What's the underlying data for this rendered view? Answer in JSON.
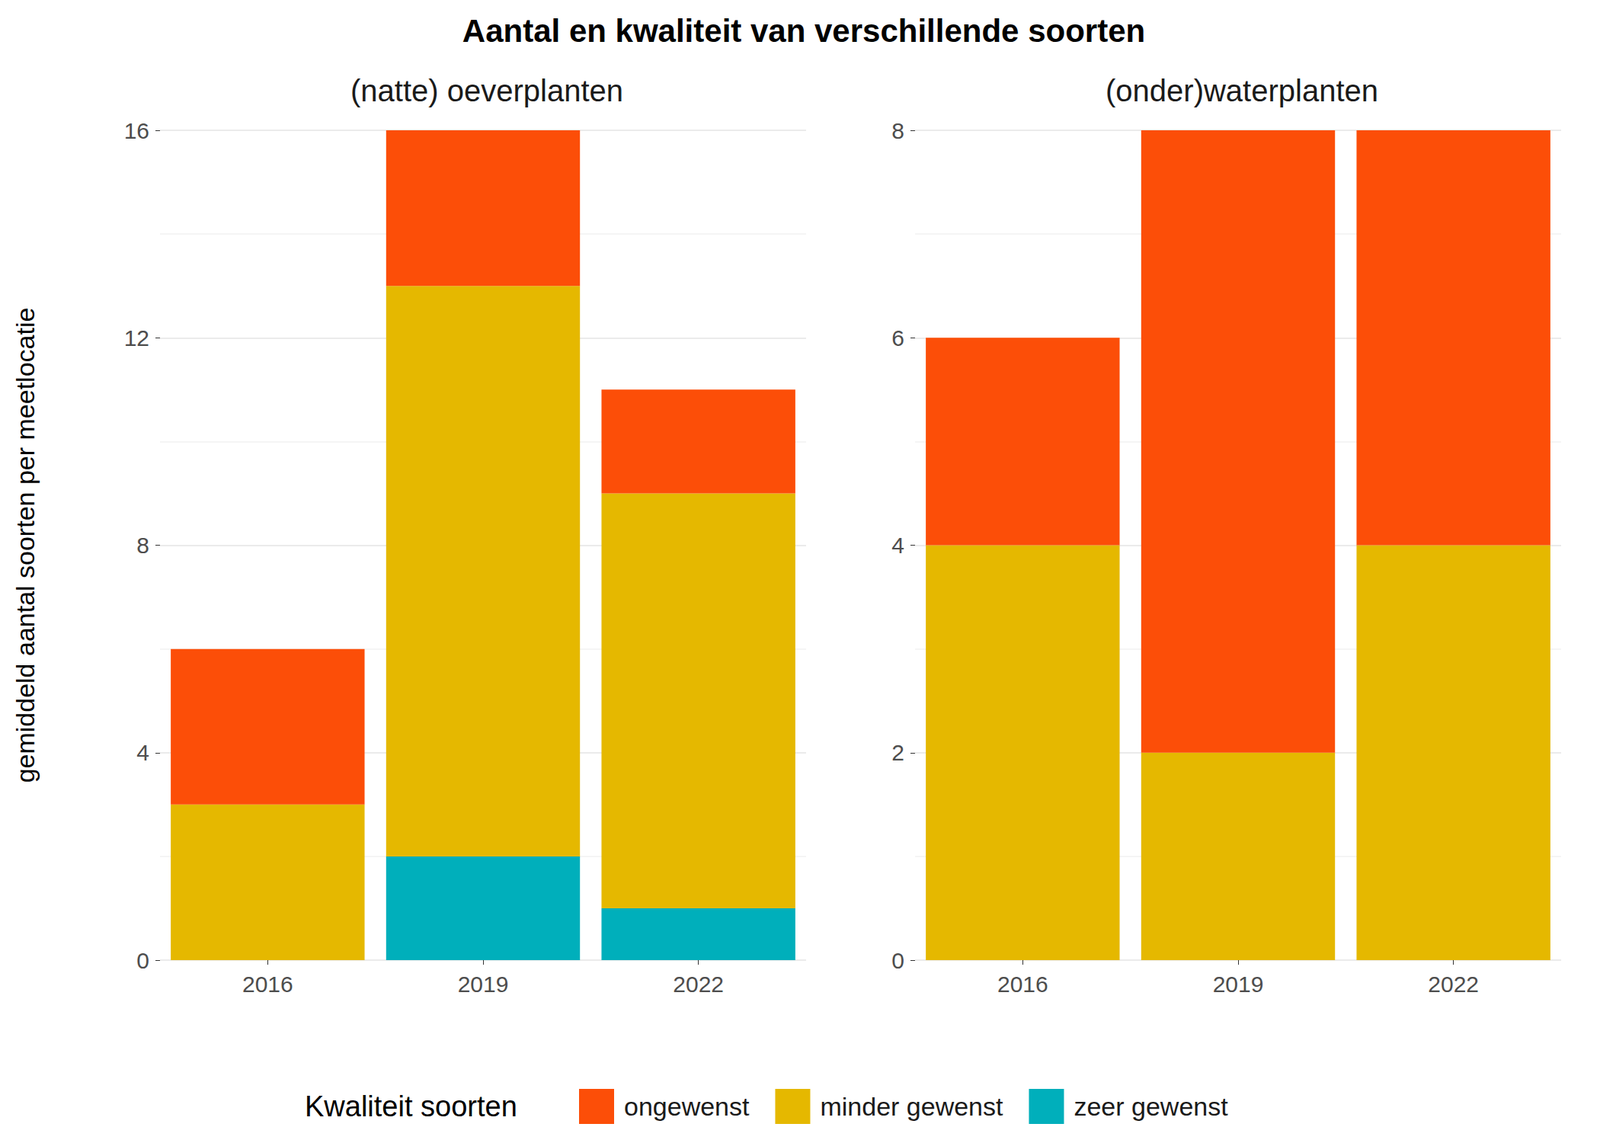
{
  "title": "Aantal en kwaliteit van verschillende soorten",
  "y_label": "gemiddeld aantal soorten per meetlocatie",
  "legend_title": "Kwaliteit soorten",
  "legend": "bottom",
  "chart_data": [
    {
      "type": "bar",
      "stacked": true,
      "grid": true,
      "subtitle": "(natte) oeverplanten",
      "categories": [
        "2016",
        "2019",
        "2022"
      ],
      "series": [
        {
          "name": "ongewenst",
          "color": "#FC4E08",
          "values": [
            3,
            3,
            2
          ]
        },
        {
          "name": "minder gewenst",
          "color": "#E5B800",
          "values": [
            3,
            11,
            8
          ]
        },
        {
          "name": "zeer gewenst",
          "color": "#00AFBB",
          "values": [
            0,
            2,
            1
          ]
        }
      ],
      "ylim": [
        0,
        16
      ],
      "yticks": [
        0,
        4,
        8,
        12,
        16
      ]
    },
    {
      "type": "bar",
      "stacked": true,
      "grid": true,
      "subtitle": "(onder)waterplanten",
      "categories": [
        "2016",
        "2019",
        "2022"
      ],
      "series": [
        {
          "name": "ongewenst",
          "color": "#FC4E08",
          "values": [
            2,
            6,
            4
          ]
        },
        {
          "name": "minder gewenst",
          "color": "#E5B800",
          "values": [
            4,
            2,
            4
          ]
        },
        {
          "name": "zeer gewenst",
          "color": "#00AFBB",
          "values": [
            0,
            0,
            0
          ]
        }
      ],
      "ylim": [
        0,
        8
      ],
      "yticks": [
        0,
        2,
        4,
        6,
        8
      ]
    }
  ]
}
